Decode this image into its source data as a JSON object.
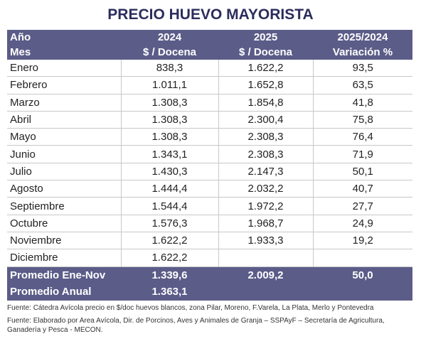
{
  "title": "PRECIO HUEVO MAYORISTA",
  "table": {
    "header": [
      [
        "Año",
        "2024",
        "2025",
        "2025/2024"
      ],
      [
        "Mes",
        "$ / Docena",
        "$ / Docena",
        "Variación %"
      ]
    ],
    "rows": [
      [
        "Enero",
        "838,3",
        "1.622,2",
        "93,5"
      ],
      [
        "Febrero",
        "1.011,1",
        "1.652,8",
        "63,5"
      ],
      [
        "Marzo",
        "1.308,3",
        "1.854,8",
        "41,8"
      ],
      [
        "Abril",
        "1.308,3",
        "2.300,4",
        "75,8"
      ],
      [
        "Mayo",
        "1.308,3",
        "2.308,3",
        "76,4"
      ],
      [
        "Junio",
        "1.343,1",
        "2.308,3",
        "71,9"
      ],
      [
        "Julio",
        "1.430,3",
        "2.147,3",
        "50,1"
      ],
      [
        "Agosto",
        "1.444,4",
        "2.032,2",
        "40,7"
      ],
      [
        "Septiembre",
        "1.544,4",
        "1.972,2",
        "27,7"
      ],
      [
        "Octubre",
        "1.576,3",
        "1.968,7",
        "24,9"
      ],
      [
        "Noviembre",
        "1.622,2",
        "1.933,3",
        "19,2"
      ],
      [
        "Diciembre",
        "1.622,2"
      ]
    ],
    "footer": [
      [
        "Promedio Ene-Nov",
        "1.339,6",
        "2.009,2",
        "50,0"
      ],
      [
        "Promedio Anual",
        "1.363,1"
      ]
    ]
  },
  "sources": [
    "Fuente: Cátedra Avícola precio en $/doc huevos blancos, zona Pilar, Moreno, F.Varela, La Plata, Merlo y Pontevedra",
    "Fuente: Elaborado por Area Avícola, Dir. de Porcinos, Aves y Animales de Granja  – SSPAyF – Secretaría de Agricultura, Ganadería y Pesca - MECON."
  ]
}
